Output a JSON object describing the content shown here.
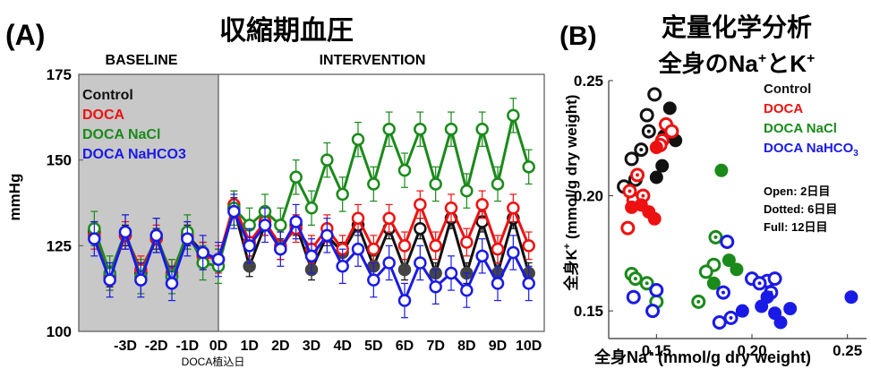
{
  "panelA": {
    "label": "(A)",
    "title": "収縮期血圧",
    "baseline_label": "BASELINE",
    "intervention_label": "INTERVENTION",
    "ylabel": "mmHg",
    "implant_label": "DOCA植込日",
    "legend": [
      {
        "text": "Control",
        "color": "#111111"
      },
      {
        "text": "DOCA",
        "color": "#ee1111"
      },
      {
        "text": "DOCA NaCl",
        "color": "#1a8a1a"
      },
      {
        "text": "DOCA NaHCO3",
        "color": "#1a1ae6"
      }
    ]
  },
  "panelB": {
    "label": "(B)",
    "title_line1": "定量化学分析",
    "title_line2_main": "全身のNa",
    "title_line2_sup1": "+",
    "title_line2_mid": "とK",
    "title_line2_sup2": "+",
    "xlabel_pre": "全身Na",
    "xlabel_sup": "+",
    "xlabel_post": " (mmol/g dry weight)",
    "ylabel_pre": "全身K",
    "ylabel_sup": "+",
    "ylabel_post": " (mmol/g dry weight)",
    "legend": [
      {
        "text": "Control",
        "color": "#111111"
      },
      {
        "text": "DOCA",
        "color": "#ee1111"
      },
      {
        "text": "DOCA NaCl",
        "color": "#1a8a1a"
      },
      {
        "text": "DOCA NaHCO",
        "sub": "3",
        "color": "#1a1ae6"
      }
    ],
    "notes": [
      "Open: 2日目",
      "Dotted: 6日目",
      "Full: 12日目"
    ]
  },
  "chart_data": [
    {
      "type": "line",
      "title": "収縮期血圧",
      "xlabel": "",
      "ylabel": "mmHg",
      "ylim": [
        100,
        175
      ],
      "yticks": [
        100,
        125,
        150,
        175
      ],
      "xlim": [
        -4.5,
        10.5
      ],
      "xticks": [
        {
          "x": -3,
          "label": "-3D"
        },
        {
          "x": -2,
          "label": "-2D"
        },
        {
          "x": -1,
          "label": "-1D"
        },
        {
          "x": 0,
          "label": "0D"
        },
        {
          "x": 1,
          "label": "1D"
        },
        {
          "x": 2,
          "label": "2D"
        },
        {
          "x": 3,
          "label": "3D"
        },
        {
          "x": 4,
          "label": "4D"
        },
        {
          "x": 5,
          "label": "5D"
        },
        {
          "x": 6,
          "label": "6D"
        },
        {
          "x": 7,
          "label": "7D"
        },
        {
          "x": 8,
          "label": "8D"
        },
        {
          "x": 9,
          "label": "9D"
        },
        {
          "x": 10,
          "label": "10D"
        }
      ],
      "baseline_range": [
        -4.5,
        0
      ],
      "x": [
        -4,
        -3.5,
        -3,
        -2.5,
        -2,
        -1.5,
        -1,
        -0.5,
        0,
        0.5,
        1,
        1.5,
        2,
        2.5,
        3,
        3.5,
        4,
        4.5,
        5,
        5.5,
        6,
        6.5,
        7,
        7.5,
        8,
        8.5,
        9,
        9.5,
        10
      ],
      "series": [
        {
          "name": "Control",
          "color": "#111111",
          "err": 3,
          "values": [
            129,
            116,
            128,
            117,
            127,
            116,
            128,
            123,
            121,
            136,
            119,
            131,
            124,
            131,
            118,
            128,
            123,
            131,
            119,
            130,
            118,
            130,
            117,
            133,
            117,
            132,
            117,
            133,
            117
          ],
          "filled": [
            false,
            false,
            false,
            false,
            false,
            false,
            false,
            false,
            false,
            false,
            true,
            false,
            true,
            false,
            true,
            false,
            true,
            false,
            true,
            false,
            true,
            false,
            true,
            false,
            true,
            false,
            true,
            false,
            true
          ]
        },
        {
          "name": "DOCA",
          "color": "#ee1111",
          "err": 4,
          "values": [
            128,
            116,
            128,
            118,
            127,
            117,
            128,
            122,
            121,
            137,
            126,
            132,
            125,
            130,
            124,
            130,
            124,
            133,
            124,
            133,
            125,
            137,
            125,
            136,
            126,
            137,
            124,
            136,
            125
          ],
          "filled": [
            false,
            false,
            false,
            false,
            false,
            false,
            false,
            false,
            false,
            false,
            false,
            false,
            false,
            false,
            false,
            false,
            false,
            false,
            false,
            false,
            false,
            false,
            false,
            false,
            false,
            false,
            false,
            false,
            false
          ]
        },
        {
          "name": "DOCA NaCl",
          "color": "#1a8a1a",
          "err": 5,
          "values": [
            130,
            117,
            129,
            116,
            128,
            116,
            129,
            120,
            119,
            136,
            131,
            135,
            131,
            145,
            136,
            150,
            140,
            156,
            143,
            159,
            147,
            159,
            143,
            159,
            141,
            159,
            143,
            163,
            148
          ],
          "filled": [
            false,
            false,
            false,
            false,
            false,
            false,
            false,
            false,
            false,
            false,
            false,
            false,
            false,
            false,
            false,
            false,
            false,
            false,
            false,
            false,
            false,
            false,
            false,
            false,
            false,
            false,
            false,
            false,
            false
          ]
        },
        {
          "name": "DOCA NaHCO3",
          "color": "#1a1ae6",
          "err": 5,
          "values": [
            127,
            115,
            129,
            115,
            128,
            114,
            127,
            123,
            121,
            135,
            125,
            131,
            124,
            132,
            122,
            128,
            119,
            124,
            115,
            120,
            109,
            120,
            113,
            117,
            112,
            122,
            114,
            123,
            114
          ],
          "filled": [
            false,
            false,
            false,
            false,
            false,
            false,
            false,
            false,
            false,
            false,
            false,
            false,
            false,
            false,
            false,
            false,
            false,
            false,
            false,
            false,
            false,
            false,
            false,
            false,
            false,
            false,
            false,
            false,
            false
          ]
        }
      ]
    },
    {
      "type": "scatter",
      "title": "定量化学分析 全身のNa+とK+",
      "xlabel": "全身Na+ (mmol/g dry weight)",
      "ylabel": "全身K+ (mmol/g dry weight)",
      "xlim": [
        0.125,
        0.26
      ],
      "ylim": [
        0.138,
        0.25
      ],
      "xticks": [
        0.15,
        0.2,
        0.25
      ],
      "yticks": [
        0.15,
        0.2,
        0.25
      ],
      "series": [
        {
          "name": "Control",
          "color": "#111111",
          "points": [
            {
              "x": 0.149,
              "y": 0.244,
              "day": 2
            },
            {
              "x": 0.145,
              "y": 0.235,
              "day": 2
            },
            {
              "x": 0.137,
              "y": 0.216,
              "day": 2
            },
            {
              "x": 0.133,
              "y": 0.204,
              "day": 2
            },
            {
              "x": 0.139,
              "y": 0.207,
              "day": 6
            },
            {
              "x": 0.142,
              "y": 0.22,
              "day": 6
            },
            {
              "x": 0.146,
              "y": 0.228,
              "day": 6
            },
            {
              "x": 0.157,
              "y": 0.238,
              "day": 12
            },
            {
              "x": 0.16,
              "y": 0.224,
              "day": 12
            },
            {
              "x": 0.154,
              "y": 0.226,
              "day": 12
            },
            {
              "x": 0.153,
              "y": 0.213,
              "day": 12
            },
            {
              "x": 0.15,
              "y": 0.208,
              "day": 12
            }
          ]
        },
        {
          "name": "DOCA",
          "color": "#ee1111",
          "points": [
            {
              "x": 0.155,
              "y": 0.231,
              "day": 2
            },
            {
              "x": 0.158,
              "y": 0.228,
              "day": 2
            },
            {
              "x": 0.153,
              "y": 0.224,
              "day": 2
            },
            {
              "x": 0.138,
              "y": 0.198,
              "day": 2
            },
            {
              "x": 0.135,
              "y": 0.186,
              "day": 2
            },
            {
              "x": 0.152,
              "y": 0.222,
              "day": 6
            },
            {
              "x": 0.14,
              "y": 0.209,
              "day": 6
            },
            {
              "x": 0.136,
              "y": 0.202,
              "day": 6
            },
            {
              "x": 0.143,
              "y": 0.2,
              "day": 6
            },
            {
              "x": 0.15,
              "y": 0.221,
              "day": 12
            },
            {
              "x": 0.142,
              "y": 0.196,
              "day": 12
            },
            {
              "x": 0.137,
              "y": 0.195,
              "day": 12
            },
            {
              "x": 0.146,
              "y": 0.193,
              "day": 12
            },
            {
              "x": 0.149,
              "y": 0.19,
              "day": 12
            }
          ]
        },
        {
          "name": "DOCA NaCl",
          "color": "#1a8a1a",
          "points": [
            {
              "x": 0.18,
              "y": 0.17,
              "day": 2
            },
            {
              "x": 0.176,
              "y": 0.167,
              "day": 2
            },
            {
              "x": 0.137,
              "y": 0.166,
              "day": 2
            },
            {
              "x": 0.15,
              "y": 0.154,
              "day": 2
            },
            {
              "x": 0.181,
              "y": 0.182,
              "day": 6
            },
            {
              "x": 0.139,
              "y": 0.164,
              "day": 6
            },
            {
              "x": 0.145,
              "y": 0.162,
              "day": 6
            },
            {
              "x": 0.172,
              "y": 0.154,
              "day": 6
            },
            {
              "x": 0.184,
              "y": 0.211,
              "day": 12
            },
            {
              "x": 0.188,
              "y": 0.172,
              "day": 12
            },
            {
              "x": 0.192,
              "y": 0.168,
              "day": 12
            },
            {
              "x": 0.18,
              "y": 0.162,
              "day": 12
            },
            {
              "x": 0.185,
              "y": 0.158,
              "day": 12
            }
          ]
        },
        {
          "name": "DOCA NaHCO3",
          "color": "#1a1ae6",
          "points": [
            {
              "x": 0.187,
              "y": 0.18,
              "day": 2
            },
            {
              "x": 0.15,
              "y": 0.159,
              "day": 2
            },
            {
              "x": 0.138,
              "y": 0.156,
              "day": 2
            },
            {
              "x": 0.148,
              "y": 0.15,
              "day": 2
            },
            {
              "x": 0.2,
              "y": 0.164,
              "day": 2
            },
            {
              "x": 0.208,
              "y": 0.163,
              "day": 2
            },
            {
              "x": 0.212,
              "y": 0.164,
              "day": 2
            },
            {
              "x": 0.183,
              "y": 0.145,
              "day": 2
            },
            {
              "x": 0.185,
              "y": 0.158,
              "day": 6
            },
            {
              "x": 0.204,
              "y": 0.162,
              "day": 6
            },
            {
              "x": 0.21,
              "y": 0.158,
              "day": 6
            },
            {
              "x": 0.189,
              "y": 0.147,
              "day": 6
            },
            {
              "x": 0.208,
              "y": 0.156,
              "day": 12
            },
            {
              "x": 0.205,
              "y": 0.152,
              "day": 12
            },
            {
              "x": 0.212,
              "y": 0.149,
              "day": 12
            },
            {
              "x": 0.22,
              "y": 0.151,
              "day": 12
            },
            {
              "x": 0.252,
              "y": 0.156,
              "day": 12
            },
            {
              "x": 0.195,
              "y": 0.15,
              "day": 12
            },
            {
              "x": 0.215,
              "y": 0.145,
              "day": 12
            }
          ]
        }
      ]
    }
  ]
}
